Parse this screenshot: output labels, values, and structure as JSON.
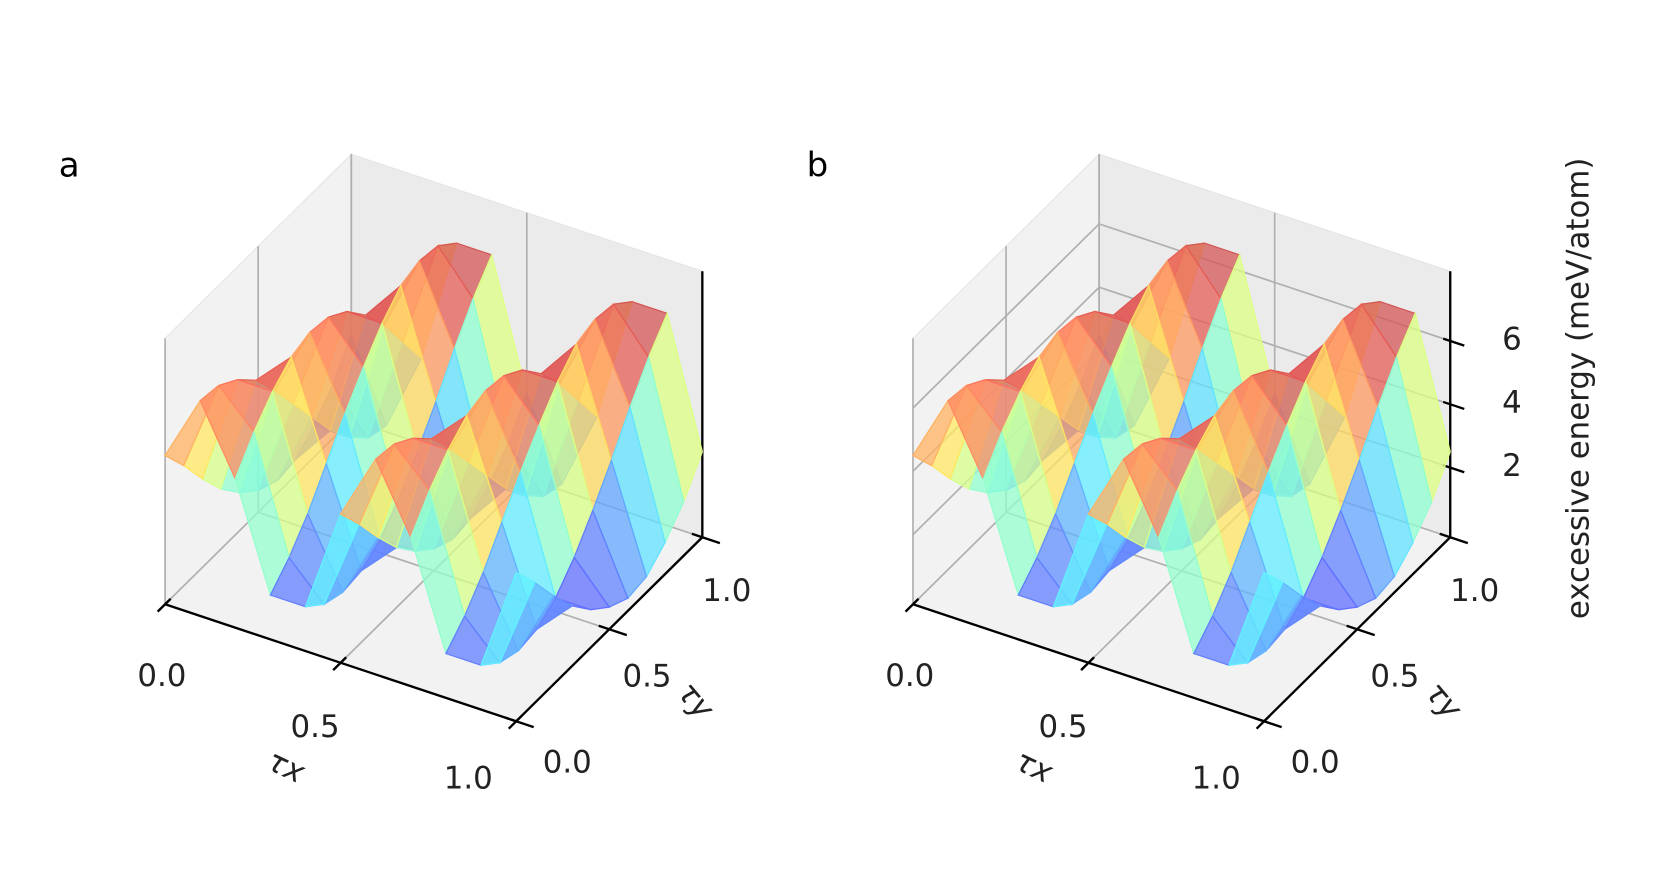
{
  "chart_data": [
    {
      "type": "surface3d",
      "panel_label": "a",
      "x": [
        0,
        0.1,
        0.2,
        0.3,
        0.4,
        0.5,
        0.6,
        0.7,
        0.8,
        0.9,
        1.0
      ],
      "y": [
        0,
        0.1,
        0.2,
        0.3,
        0.4,
        0.5,
        0.6,
        0.7,
        0.8,
        0.9,
        1.0
      ],
      "z": [
        [
          4.5,
          6.6,
          4.5,
          1.2,
          1.2,
          4.5,
          6.6,
          4.5,
          1.2,
          1.2,
          4.5
        ],
        [
          3.6,
          6.5,
          5.4,
          1.8,
          0.7,
          3.6,
          6.5,
          5.4,
          1.8,
          0.7,
          3.6
        ],
        [
          2.6,
          6.1,
          6.1,
          2.6,
          0.5,
          2.6,
          6.1,
          6.1,
          2.6,
          0.5,
          2.6
        ],
        [
          1.7,
          5.5,
          6.6,
          3.6,
          0.6,
          1.7,
          5.5,
          6.6,
          3.6,
          0.6,
          1.7
        ],
        [
          1.0,
          4.6,
          6.8,
          4.6,
          1.0,
          1.0,
          4.6,
          6.8,
          4.6,
          1.0,
          1.0
        ],
        [
          0.5,
          3.6,
          6.7,
          5.5,
          1.7,
          0.5,
          3.6,
          6.7,
          5.5,
          1.7,
          0.5
        ],
        [
          0.2,
          2.6,
          6.3,
          6.3,
          2.6,
          0.2,
          2.6,
          6.3,
          6.3,
          2.6,
          0.2
        ],
        [
          0.3,
          1.6,
          5.6,
          6.9,
          3.6,
          0.3,
          1.6,
          5.6,
          6.9,
          3.6,
          0.3
        ],
        [
          0.8,
          0.8,
          4.7,
          7.1,
          4.7,
          0.8,
          0.8,
          4.7,
          7.1,
          4.7,
          0.8
        ],
        [
          1.5,
          0.2,
          3.6,
          7.0,
          5.7,
          1.5,
          0.2,
          3.6,
          7.0,
          5.7,
          1.5
        ],
        [
          2.5,
          0.0,
          2.5,
          6.5,
          6.5,
          2.5,
          0.0,
          2.5,
          6.5,
          6.5,
          2.5
        ]
      ],
      "xlim": [
        0,
        1
      ],
      "ylim": [
        0,
        1
      ],
      "zlim": [
        -0.2,
        8.2
      ],
      "xticks": [
        {
          "value": 0,
          "label": "0.0"
        },
        {
          "value": 0.5,
          "label": "0.5"
        },
        {
          "value": 1,
          "label": "1.0"
        }
      ],
      "yticks": [
        {
          "value": 0,
          "label": "0.0"
        },
        {
          "value": 0.5,
          "label": "0.5"
        },
        {
          "value": 1,
          "label": "1.0"
        }
      ],
      "xlabel": "τx",
      "ylabel": "τy",
      "colormap": "jet",
      "grid": true
    },
    {
      "type": "surface3d",
      "panel_label": "b",
      "x": [
        0,
        0.1,
        0.2,
        0.3,
        0.4,
        0.5,
        0.6,
        0.7,
        0.8,
        0.9,
        1.0
      ],
      "y": [
        0,
        0.1,
        0.2,
        0.3,
        0.4,
        0.5,
        0.6,
        0.7,
        0.8,
        0.9,
        1.0
      ],
      "z": [
        [
          4.5,
          6.6,
          4.5,
          1.2,
          1.2,
          4.5,
          6.6,
          4.5,
          1.2,
          1.2,
          4.5
        ],
        [
          3.6,
          6.5,
          5.4,
          1.8,
          0.7,
          3.6,
          6.5,
          5.4,
          1.8,
          0.7,
          3.6
        ],
        [
          2.6,
          6.1,
          6.1,
          2.6,
          0.5,
          2.6,
          6.1,
          6.1,
          2.6,
          0.5,
          2.6
        ],
        [
          1.7,
          5.5,
          6.6,
          3.6,
          0.6,
          1.7,
          5.5,
          6.6,
          3.6,
          0.6,
          1.7
        ],
        [
          1.0,
          4.6,
          6.8,
          4.6,
          1.0,
          1.0,
          4.6,
          6.8,
          4.6,
          1.0,
          1.0
        ],
        [
          0.5,
          3.6,
          6.7,
          5.5,
          1.7,
          0.5,
          3.6,
          6.7,
          5.5,
          1.7,
          0.5
        ],
        [
          0.2,
          2.6,
          6.3,
          6.3,
          2.6,
          0.2,
          2.6,
          6.3,
          6.3,
          2.6,
          0.2
        ],
        [
          0.3,
          1.6,
          5.6,
          6.9,
          3.6,
          0.3,
          1.6,
          5.6,
          6.9,
          3.6,
          0.3
        ],
        [
          0.8,
          0.8,
          4.7,
          7.1,
          4.7,
          0.8,
          0.8,
          4.7,
          7.1,
          4.7,
          0.8
        ],
        [
          1.5,
          0.2,
          3.6,
          7.0,
          5.7,
          1.5,
          0.2,
          3.6,
          7.0,
          5.7,
          1.5
        ],
        [
          2.5,
          0.0,
          2.5,
          6.5,
          6.5,
          2.5,
          0.0,
          2.5,
          6.5,
          6.5,
          2.5
        ]
      ],
      "xlim": [
        0,
        1
      ],
      "ylim": [
        0,
        1
      ],
      "zlim": [
        -0.2,
        8.2
      ],
      "xticks": [
        {
          "value": 0,
          "label": "0.0"
        },
        {
          "value": 0.5,
          "label": "0.5"
        },
        {
          "value": 1,
          "label": "1.0"
        }
      ],
      "yticks": [
        {
          "value": 0,
          "label": "0.0"
        },
        {
          "value": 0.5,
          "label": "0.5"
        },
        {
          "value": 1,
          "label": "1.0"
        }
      ],
      "zticks": [
        2,
        4,
        6
      ],
      "xlabel": "τx",
      "ylabel": "τy",
      "zlabel": "excessive energy (meV/atom)",
      "colormap": "jet",
      "grid": true
    }
  ]
}
